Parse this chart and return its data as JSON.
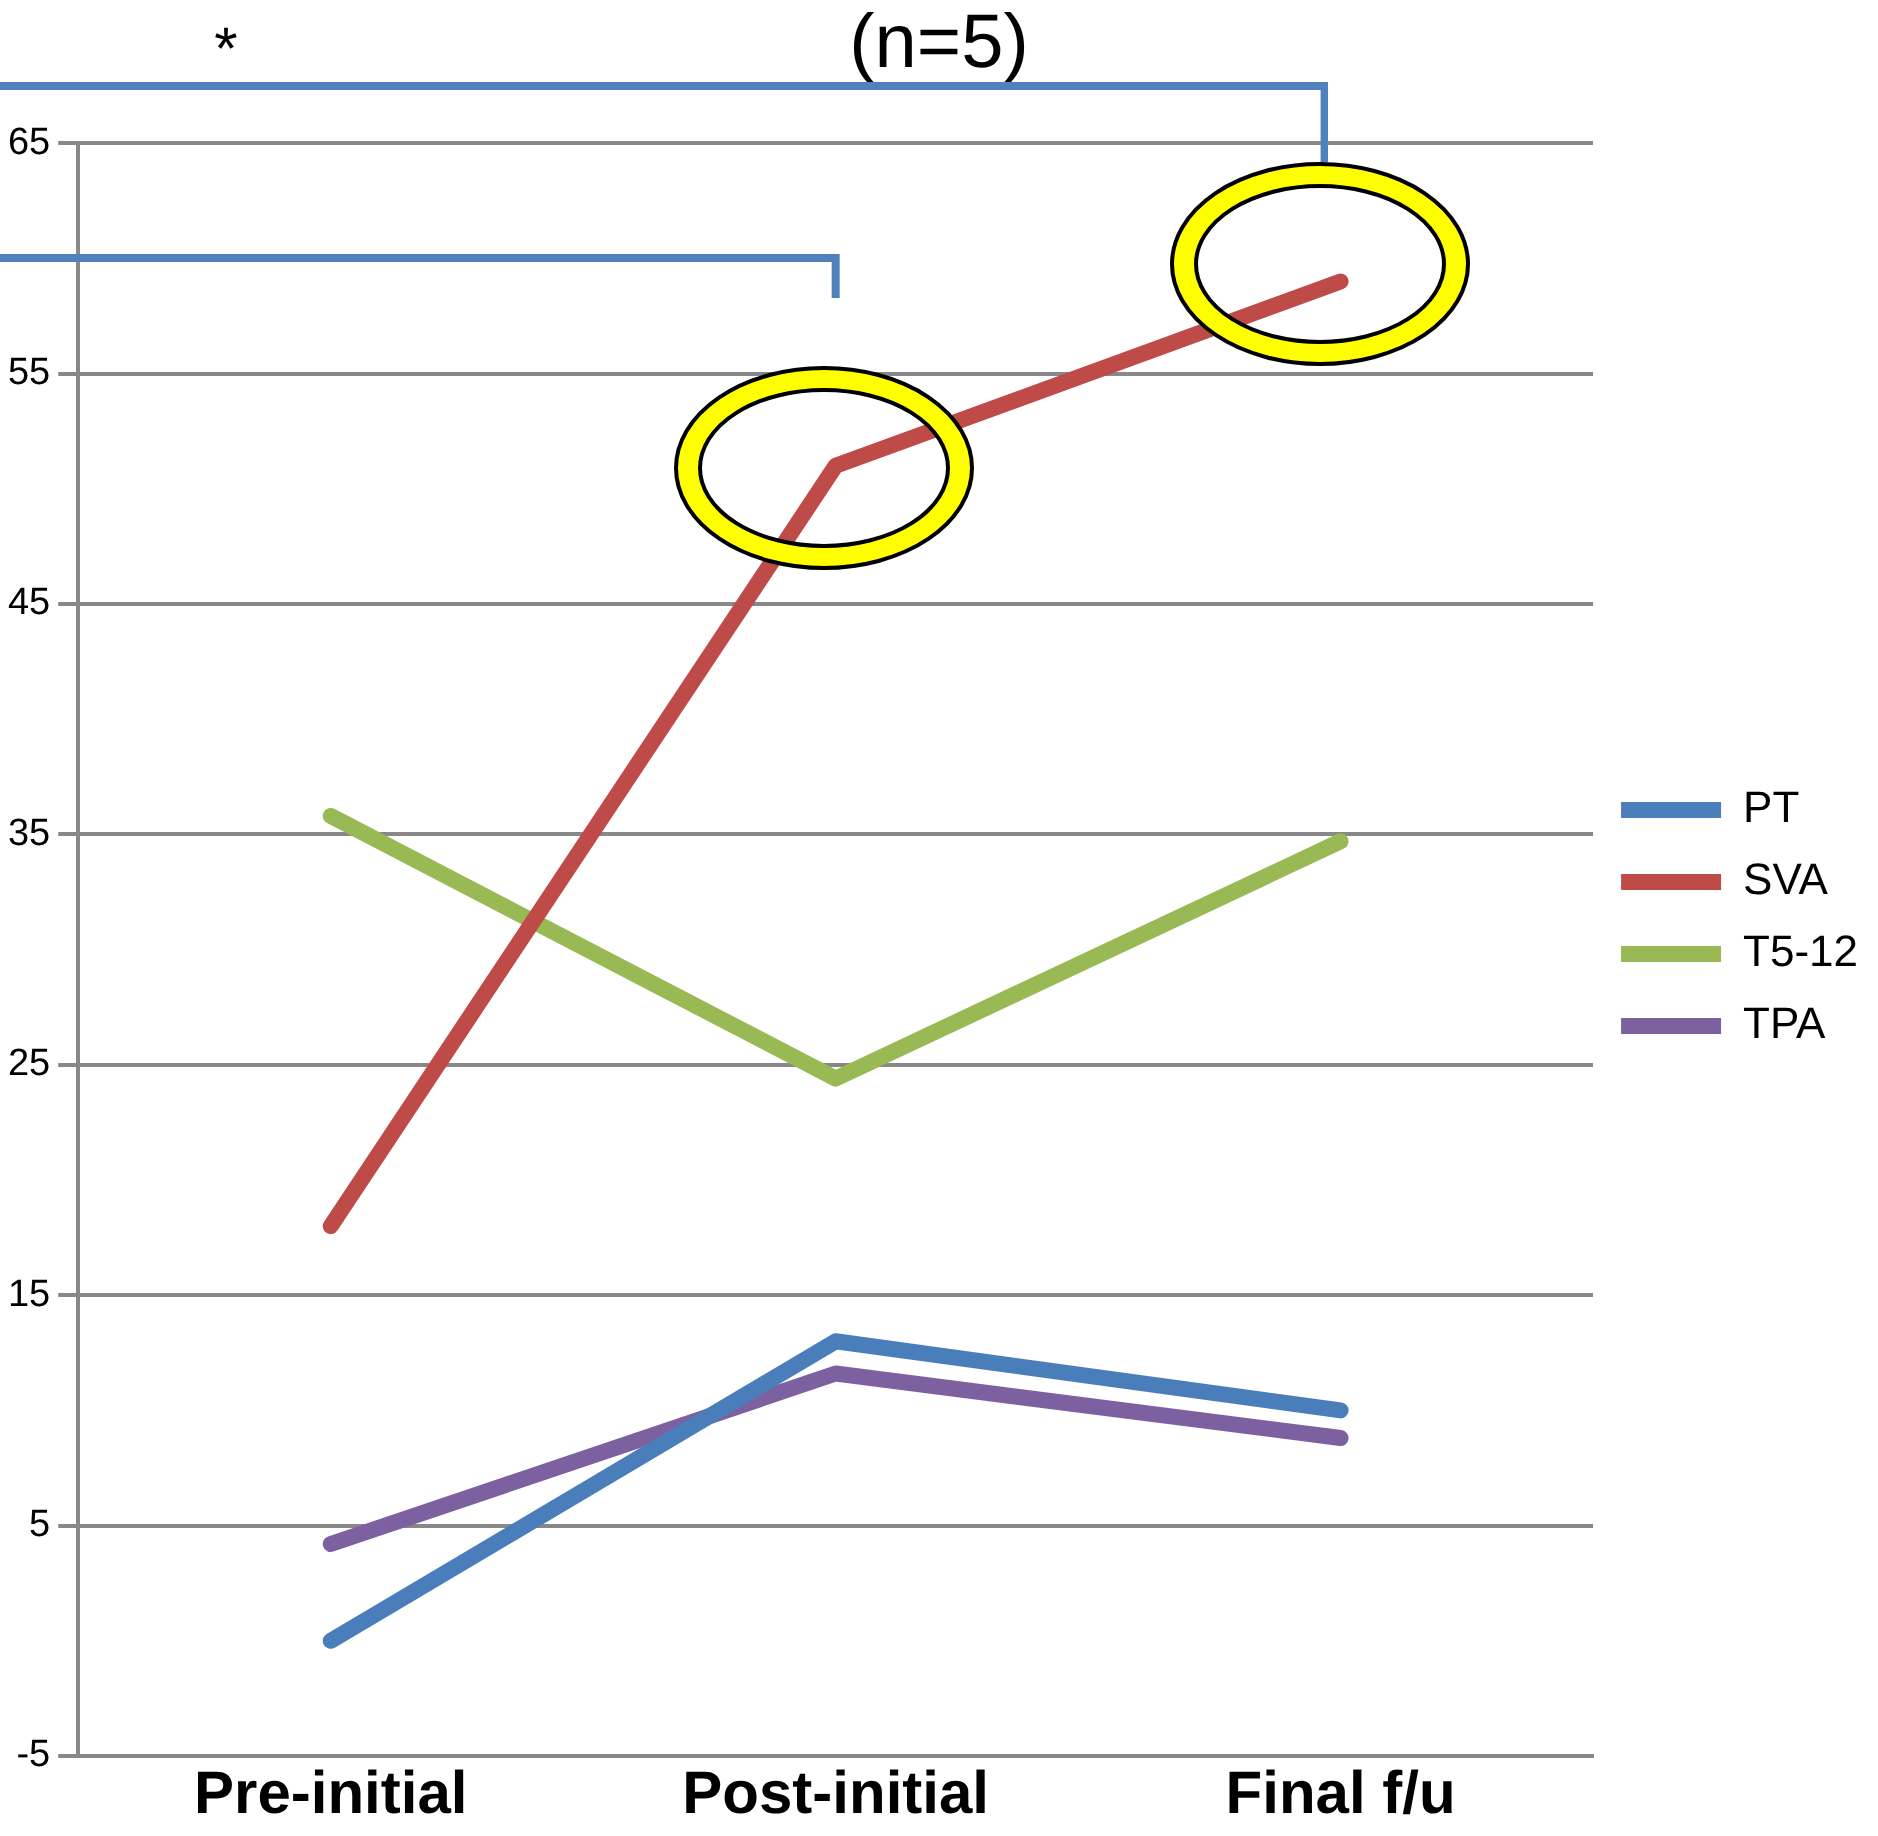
{
  "chart_data": {
    "type": "line",
    "title": "(n=5)",
    "annotations": [
      "*"
    ],
    "categories": [
      "Pre-initial",
      "Post-initial",
      "Final f/u"
    ],
    "series": [
      {
        "name": "PT",
        "color": "#4a7ebb",
        "values": [
          0,
          13,
          10
        ]
      },
      {
        "name": "SVA",
        "color": "#be4b48",
        "values": [
          18,
          51,
          59
        ]
      },
      {
        "name": "T5-12",
        "color": "#98b954",
        "values": [
          35.8,
          24.4,
          34.7
        ]
      },
      {
        "name": "TPA",
        "color": "#7d60a0",
        "values": [
          4.2,
          11.6,
          8.8
        ]
      }
    ],
    "ylim": [
      -5,
      65
    ],
    "yticks": [
      -5,
      5,
      15,
      25,
      35,
      45,
      55,
      65
    ],
    "grid": "y",
    "legend": "right",
    "marker": "none",
    "line_style": "solid"
  }
}
